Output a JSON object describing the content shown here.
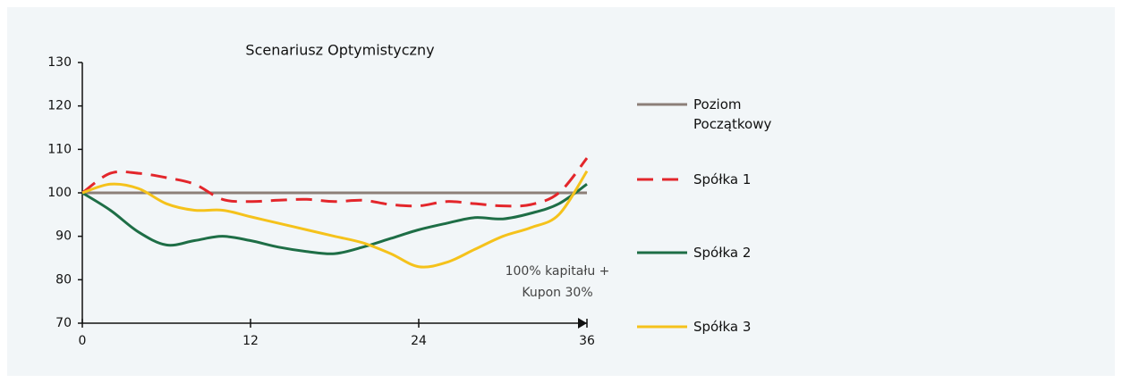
{
  "chart_data": {
    "type": "line",
    "title": "Scenariusz Optymistyczny",
    "x": [
      0,
      2,
      4,
      6,
      8,
      10,
      12,
      14,
      16,
      18,
      20,
      22,
      24,
      26,
      28,
      30,
      32,
      34,
      36
    ],
    "xlim": [
      0,
      36
    ],
    "xticks": [
      0,
      12,
      24,
      36
    ],
    "ylim": [
      70,
      130
    ],
    "yticks": [
      70,
      80,
      90,
      100,
      110,
      120,
      130
    ],
    "annotation": [
      "100% kapitału +",
      "Kupon 30%"
    ],
    "series": [
      {
        "name": "Poziom Początkowy",
        "color": "#8c7f78",
        "dash": false,
        "values": [
          100,
          100,
          100,
          100,
          100,
          100,
          100,
          100,
          100,
          100,
          100,
          100,
          100,
          100,
          100,
          100,
          100,
          100,
          100
        ]
      },
      {
        "name": "Spółka 1",
        "color": "#e3262b",
        "dash": true,
        "values": [
          100,
          104.5,
          104.5,
          103.5,
          102,
          98.5,
          98,
          98.3,
          98.5,
          98,
          98.3,
          97.3,
          97,
          98,
          97.5,
          97,
          97.3,
          100,
          108
        ]
      },
      {
        "name": "Spółka 2",
        "color": "#1e6e46",
        "dash": false,
        "values": [
          100,
          96,
          91,
          88,
          89,
          90,
          89,
          87.5,
          86.5,
          86,
          87.5,
          89.5,
          91.5,
          93,
          94.3,
          94,
          95.3,
          97.5,
          102
        ]
      },
      {
        "name": "Spółka 3",
        "color": "#f5c21b",
        "dash": false,
        "values": [
          100,
          102,
          101,
          97.5,
          96,
          96,
          94.5,
          93,
          91.5,
          90,
          88.5,
          86,
          83,
          84,
          87,
          90,
          92,
          95,
          105
        ]
      }
    ]
  }
}
